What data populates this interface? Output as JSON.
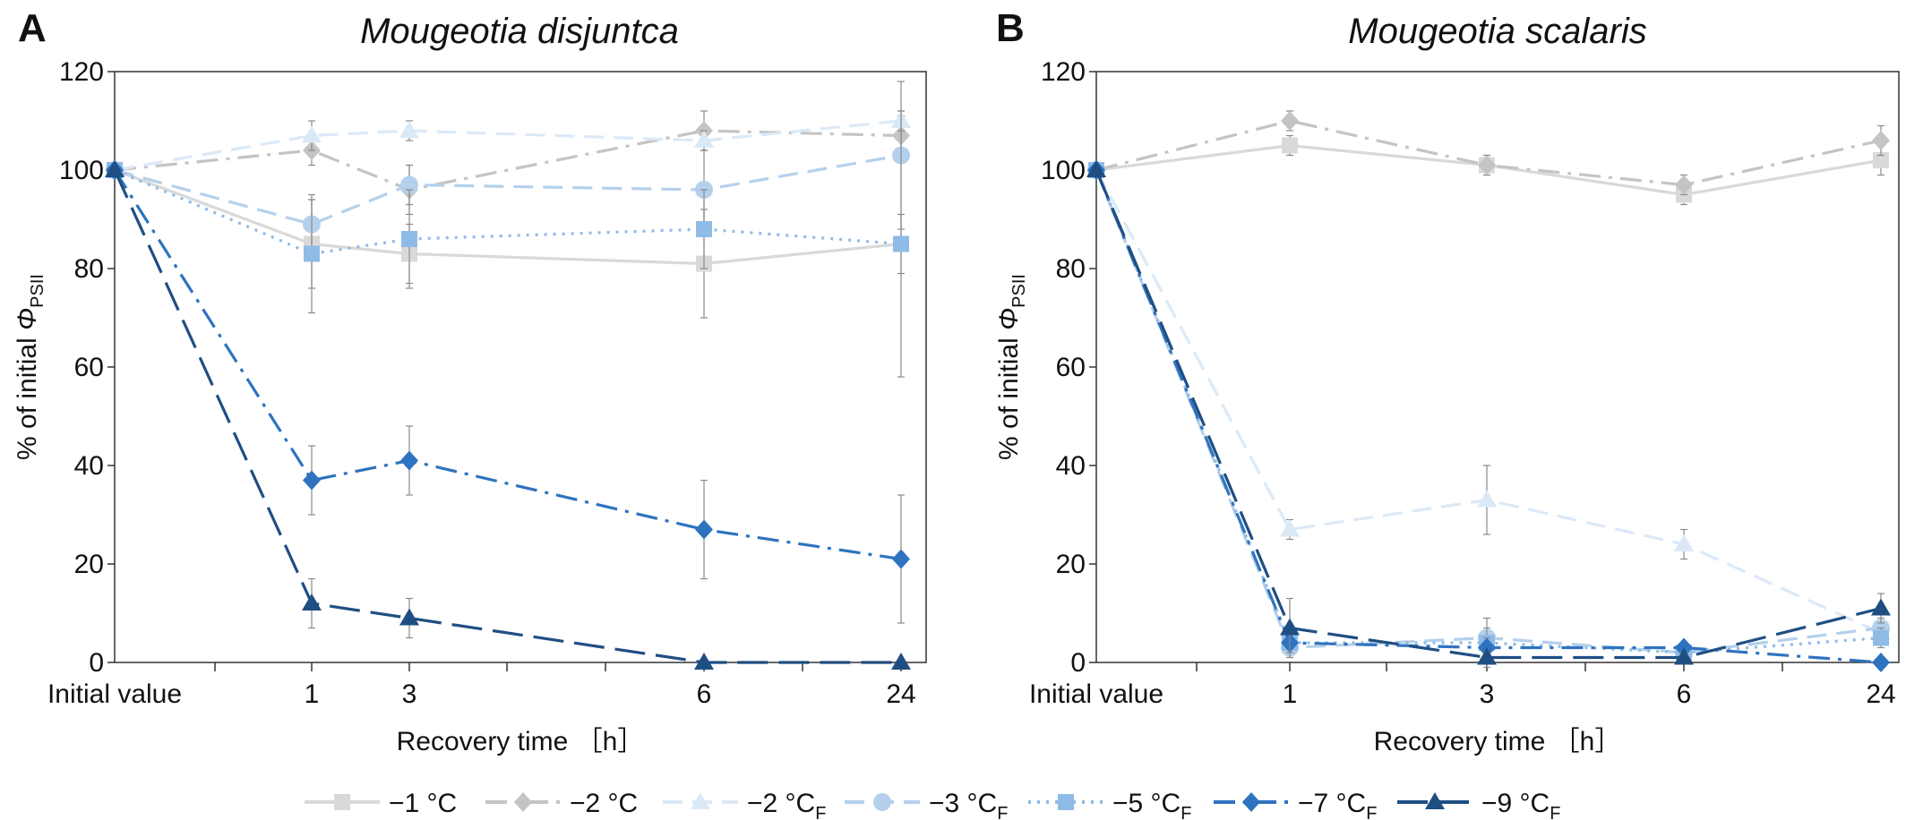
{
  "legend": {
    "placement": "bottom",
    "entries": [
      {
        "main": "−1 °C",
        "sub": ""
      },
      {
        "main": "−2 °C",
        "sub": ""
      },
      {
        "main": "−2 °C",
        "sub": "F"
      },
      {
        "main": "−3 °C",
        "sub": "F"
      },
      {
        "main": "−5 °C",
        "sub": "F"
      },
      {
        "main": "−7 °C",
        "sub": "F"
      },
      {
        "main": "−9 °C",
        "sub": "F"
      }
    ]
  },
  "series_styles": [
    {
      "color": "#d9d9d9",
      "marker": "square",
      "dash": "solid"
    },
    {
      "color": "#c4c4c4",
      "marker": "diamond",
      "dash": "dashdot"
    },
    {
      "color": "#dbe9f7",
      "marker": "triangle",
      "dash": "dashed"
    },
    {
      "color": "#b4d0ec",
      "marker": "circle",
      "dash": "dashed"
    },
    {
      "color": "#8fbbe7",
      "marker": "square",
      "dash": "dotted"
    },
    {
      "color": "#2e73bf",
      "marker": "diamond",
      "dash": "dashdot"
    },
    {
      "color": "#1f4e82",
      "marker": "triangle",
      "dash": "longdash"
    }
  ],
  "chart_data": [
    {
      "type": "line",
      "panel_letter": "A",
      "title": "Mougeotia disjuntca",
      "xlabel": "Recovery time ［h］",
      "ylabel_main": "% of initial ",
      "ylabel_symbol": "Φ",
      "ylabel_sub": "PSII",
      "categories": [
        "Initial value",
        "1",
        "3",
        "6",
        "24"
      ],
      "ylim": [
        0,
        120
      ],
      "yticks": [
        "0",
        "20",
        "40",
        "60",
        "80",
        "100",
        "120"
      ],
      "grid": false,
      "series": [
        {
          "values": [
            100,
            85,
            83,
            81,
            85
          ],
          "errors": [
            0,
            9,
            6,
            11,
            6
          ]
        },
        {
          "values": [
            100,
            104,
            96,
            108,
            107
          ],
          "errors": [
            0,
            3,
            5,
            4,
            4
          ]
        },
        {
          "values": [
            100,
            107,
            108,
            106,
            110
          ],
          "errors": [
            0,
            3,
            2,
            2,
            2
          ]
        },
        {
          "values": [
            100,
            89,
            97,
            96,
            103
          ],
          "errors": [
            0,
            5,
            4,
            8,
            15
          ]
        },
        {
          "values": [
            100,
            83,
            86,
            88,
            85
          ],
          "errors": [
            0,
            12,
            10,
            8,
            27
          ]
        },
        {
          "values": [
            100,
            37,
            41,
            27,
            21
          ],
          "errors": [
            0,
            7,
            7,
            10,
            13
          ]
        },
        {
          "values": [
            100,
            12,
            9,
            0,
            0
          ],
          "errors": [
            0,
            5,
            4,
            0,
            0
          ]
        }
      ]
    },
    {
      "type": "line",
      "panel_letter": "B",
      "title": "Mougeotia scalaris",
      "xlabel": "Recovery time ［h］",
      "ylabel_main": "% of initial ",
      "ylabel_symbol": "Φ",
      "ylabel_sub": "PSII",
      "categories": [
        "Initial value",
        "1",
        "3",
        "6",
        "24"
      ],
      "ylim": [
        0,
        120
      ],
      "yticks": [
        "0",
        "20",
        "40",
        "60",
        "80",
        "100",
        "120"
      ],
      "grid": false,
      "series": [
        {
          "values": [
            100,
            105,
            101,
            95,
            102
          ],
          "errors": [
            0,
            2,
            2,
            2,
            3
          ]
        },
        {
          "values": [
            100,
            110,
            101,
            97,
            106
          ],
          "errors": [
            0,
            2,
            2,
            2,
            3
          ]
        },
        {
          "values": [
            100,
            27,
            33,
            24,
            6
          ],
          "errors": [
            0,
            2,
            7,
            3,
            2
          ]
        },
        {
          "values": [
            100,
            3,
            5,
            2,
            7
          ],
          "errors": [
            0,
            2,
            2,
            1,
            2
          ]
        },
        {
          "values": [
            100,
            4,
            4,
            2,
            5
          ],
          "errors": [
            0,
            2,
            5,
            1,
            2
          ]
        },
        {
          "values": [
            100,
            4,
            3,
            3,
            0
          ],
          "errors": [
            0,
            2,
            2,
            1,
            0
          ]
        },
        {
          "values": [
            100,
            7,
            1,
            1,
            11
          ],
          "errors": [
            0,
            6,
            1,
            1,
            3
          ]
        }
      ]
    }
  ]
}
